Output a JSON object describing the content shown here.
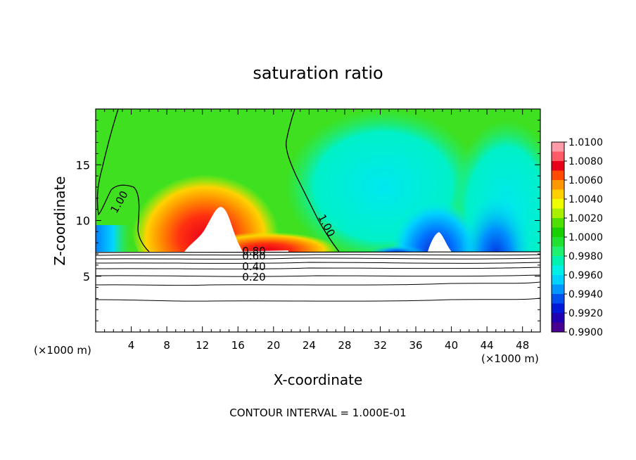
{
  "chart_data": {
    "type": "heatmap",
    "title": "saturation ratio",
    "xlabel": "X-coordinate",
    "ylabel": "Z-coordinate",
    "x_unit_left": "(×1000 m)",
    "x_unit_right": "(×1000 m)",
    "xlim": [
      0,
      50
    ],
    "ylim": [
      0,
      20
    ],
    "x_ticks": [
      4,
      8,
      12,
      16,
      20,
      24,
      28,
      32,
      36,
      40,
      44,
      48
    ],
    "y_ticks": [
      5,
      10,
      15
    ],
    "footer": "CONTOUR INTERVAL = 1.000E-01",
    "colorbar": {
      "labels": [
        "1.0100",
        "1.0080",
        "1.0060",
        "1.0040",
        "1.0020",
        "1.0000",
        "0.9980",
        "0.9960",
        "0.9940",
        "0.9920",
        "0.9900"
      ],
      "colors": [
        "#ff9aa8",
        "#ff5a66",
        "#e8001a",
        "#ff4a00",
        "#ff9800",
        "#ffd000",
        "#f0ff00",
        "#a8f000",
        "#50e000",
        "#18d000",
        "#20e030",
        "#20f070",
        "#00f2b0",
        "#00f0e8",
        "#00d2ff",
        "#0096ff",
        "#0050f0",
        "#0018d8",
        "#2000b0",
        "#480090"
      ]
    },
    "contour_labels": [
      {
        "text": "1.00",
        "x": 3.0,
        "y": 11.5
      },
      {
        "text": "1.00",
        "x": 25.6,
        "y": 9.4
      },
      {
        "text": "0.80",
        "x": 17.8,
        "y": 6.95
      },
      {
        "text": "0.60",
        "x": 17.8,
        "y": 6.5
      },
      {
        "text": "0.40",
        "x": 17.8,
        "y": 5.55
      },
      {
        "text": "0.20",
        "x": 17.8,
        "y": 4.6
      }
    ]
  }
}
